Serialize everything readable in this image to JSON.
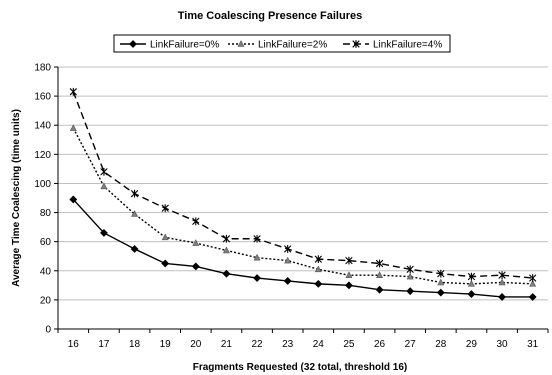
{
  "chart_data": {
    "type": "line",
    "title": "Time Coalescing Presence Failures",
    "xlabel": "Fragments Requested (32 total, threshold 16)",
    "ylabel": "Average Time Coalescing (time units)",
    "x": [
      16,
      17,
      18,
      19,
      20,
      21,
      22,
      23,
      24,
      25,
      26,
      27,
      28,
      29,
      30,
      31
    ],
    "ylim": [
      0,
      180
    ],
    "yticks": [
      0,
      20,
      40,
      60,
      80,
      100,
      120,
      140,
      160,
      180
    ],
    "grid": "horizontal",
    "legend_position": "top",
    "series": [
      {
        "name": "LinkFailure=0%",
        "color": "#000000",
        "marker": "diamond",
        "dash": "solid",
        "values": [
          89,
          66,
          55,
          45,
          43,
          38,
          35,
          33,
          31,
          30,
          27,
          26,
          25,
          24,
          22,
          22
        ]
      },
      {
        "name": "LinkFailure=2%",
        "color": "#000000",
        "marker": "triangle",
        "dash": "dot",
        "values": [
          138,
          98,
          79,
          63,
          59,
          54,
          49,
          47,
          41,
          37,
          37,
          36,
          32,
          31,
          32,
          31
        ]
      },
      {
        "name": "LinkFailure=4%",
        "color": "#000000",
        "marker": "star",
        "dash": "dash",
        "values": [
          163,
          108,
          93,
          83,
          74,
          62,
          62,
          55,
          48,
          47,
          45,
          41,
          38,
          36,
          37,
          35
        ]
      }
    ]
  }
}
